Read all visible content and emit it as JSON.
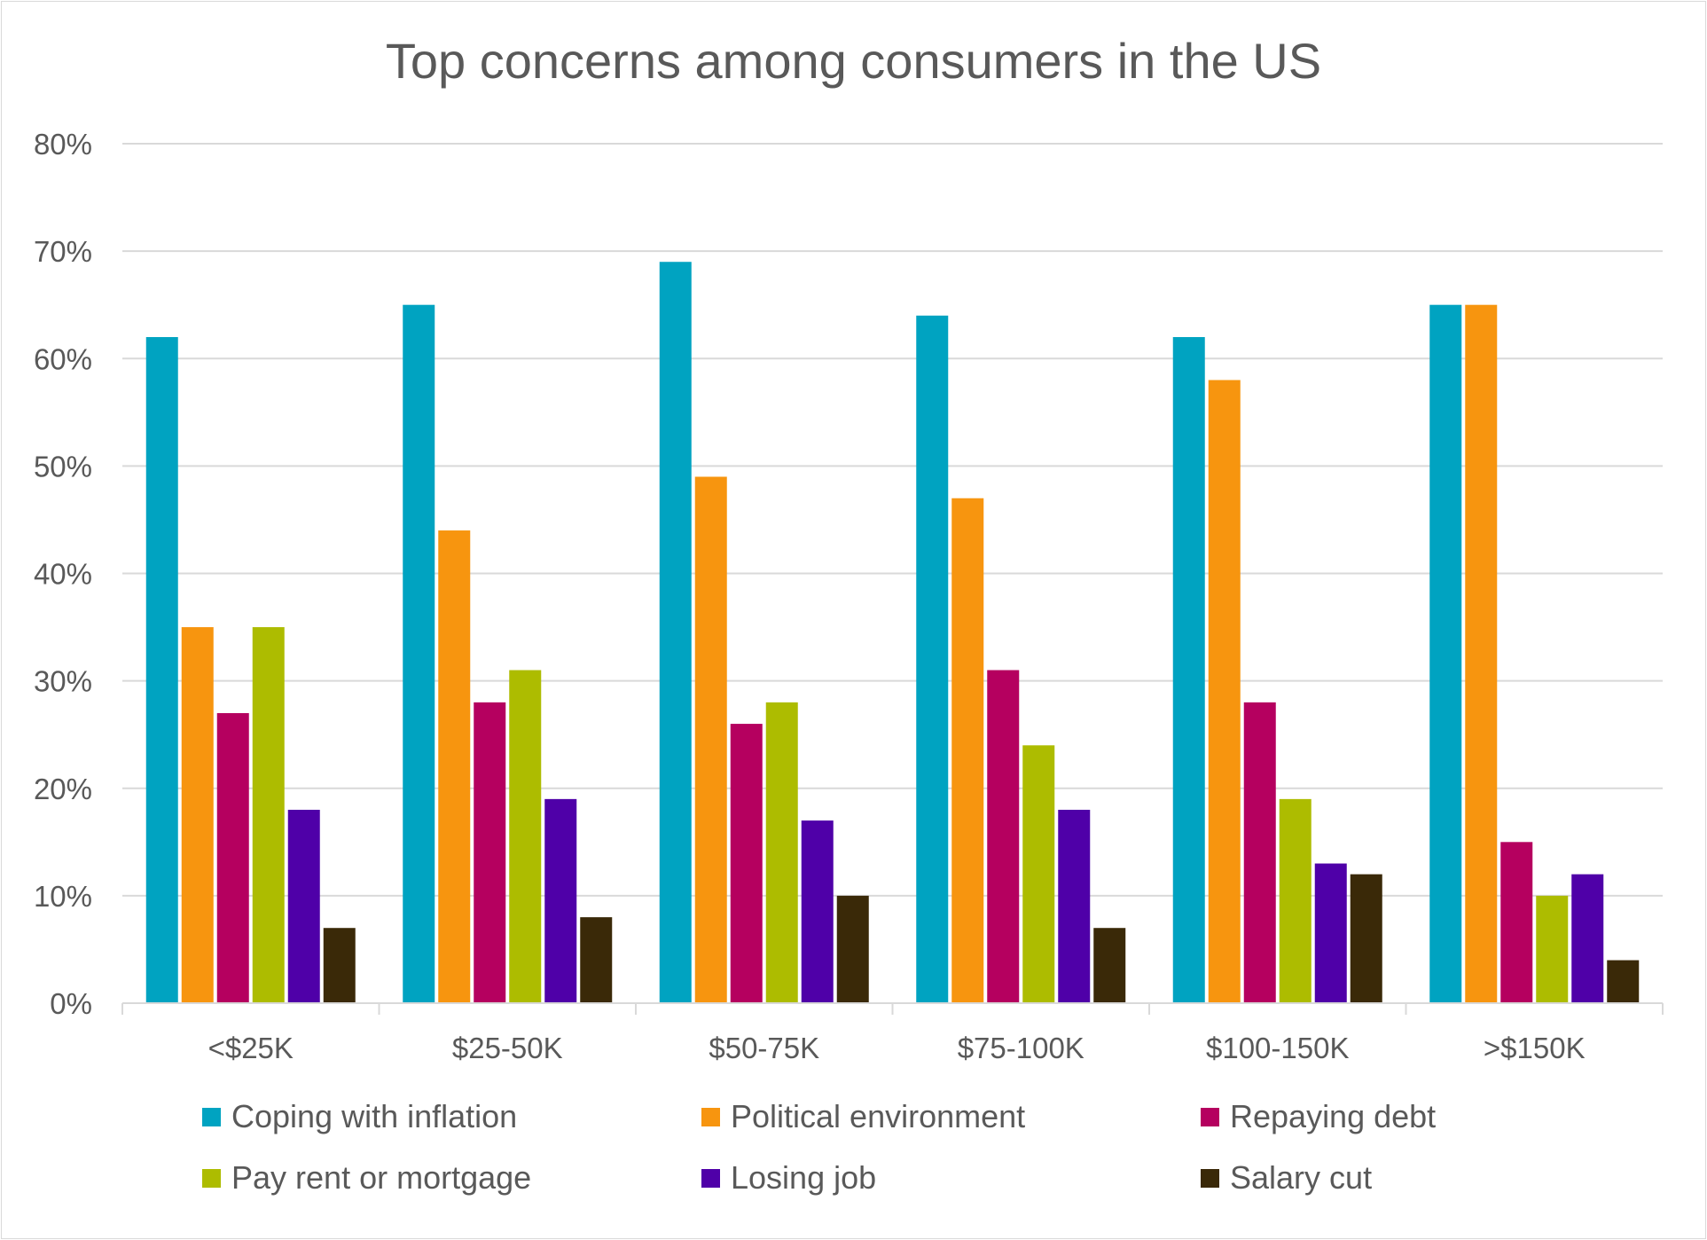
{
  "chart_data": {
    "type": "bar",
    "title": "Top concerns among consumers in the US",
    "xlabel": "",
    "ylabel": "",
    "ylim": [
      0,
      80
    ],
    "yticks": [
      "0%",
      "10%",
      "20%",
      "30%",
      "40%",
      "50%",
      "60%",
      "70%",
      "80%"
    ],
    "grid": true,
    "legend_position": "bottom",
    "categories": [
      "<$25K",
      "$25-50K",
      "$50-75K",
      "$75-100K",
      "$100-150K",
      ">$150K"
    ],
    "series": [
      {
        "name": "Coping with inflation",
        "color": "#00a3c1",
        "values": [
          62,
          65,
          69,
          64,
          62,
          65
        ]
      },
      {
        "name": "Political environment",
        "color": "#f7950f",
        "values": [
          35,
          44,
          49,
          47,
          58,
          65
        ]
      },
      {
        "name": "Repaying debt",
        "color": "#b5005f",
        "values": [
          27,
          28,
          26,
          31,
          28,
          15
        ]
      },
      {
        "name": "Pay rent or mortgage",
        "color": "#adbc00",
        "values": [
          35,
          31,
          28,
          24,
          19,
          10
        ]
      },
      {
        "name": "Losing job",
        "color": "#4f00a8",
        "values": [
          18,
          19,
          17,
          18,
          13,
          12
        ]
      },
      {
        "name": "Salary cut",
        "color": "#3a2908",
        "values": [
          7,
          8,
          10,
          7,
          12,
          4
        ]
      }
    ]
  }
}
